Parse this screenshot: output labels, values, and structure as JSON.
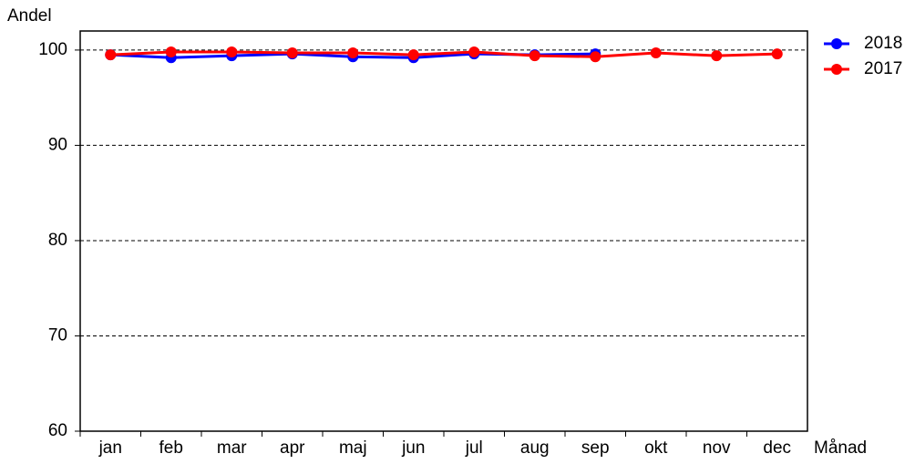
{
  "chart_data": {
    "type": "line",
    "y_label": "Andel",
    "x_label": "Månad",
    "categories": [
      "jan",
      "feb",
      "mar",
      "apr",
      "maj",
      "jun",
      "jul",
      "aug",
      "sep",
      "okt",
      "nov",
      "dec"
    ],
    "series": [
      {
        "name": "2018",
        "color": "#0000ff",
        "values": [
          99.5,
          99.2,
          99.4,
          99.6,
          99.3,
          99.2,
          99.6,
          99.5,
          99.6,
          null,
          null,
          null
        ]
      },
      {
        "name": "2017",
        "color": "#ff0000",
        "values": [
          99.5,
          99.8,
          99.8,
          99.7,
          99.7,
          99.5,
          99.8,
          99.4,
          99.3,
          99.7,
          99.4,
          99.6
        ]
      }
    ],
    "ylim": [
      60,
      102
    ],
    "yticks": [
      60,
      70,
      80,
      90,
      100
    ],
    "grid": true,
    "legend": "right"
  }
}
